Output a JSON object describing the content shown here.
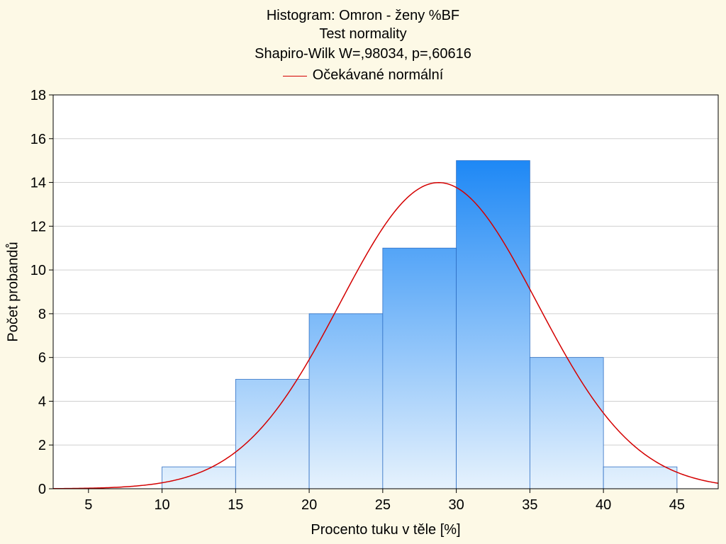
{
  "chart_data": {
    "type": "bar",
    "title": "Histogram: Omron - ženy %BF",
    "subtitle": "Test normality",
    "test_result": "Shapiro-Wilk W=,98034, p=,60616",
    "legend": [
      "Očekávané normální"
    ],
    "legend_placement": "top-center",
    "xlabel": "Procento tuku v těle [%]",
    "ylabel": "Počet probandů",
    "bins": [
      [
        10,
        15
      ],
      [
        15,
        20
      ],
      [
        20,
        25
      ],
      [
        25,
        30
      ],
      [
        30,
        35
      ],
      [
        35,
        40
      ],
      [
        40,
        45
      ]
    ],
    "values": [
      1,
      5,
      8,
      11,
      15,
      6,
      1
    ],
    "xlim": [
      2.6,
      47.8
    ],
    "ylim": [
      0,
      18
    ],
    "xticks": [
      5,
      10,
      15,
      20,
      25,
      30,
      35,
      40,
      45
    ],
    "yticks": [
      0,
      2,
      4,
      6,
      8,
      10,
      12,
      14,
      16,
      18
    ],
    "grid": true,
    "normal_curve": {
      "name": "Očekávané normální",
      "mean": 28.8,
      "sd": 6.7,
      "n": 47,
      "bin_width": 5
    },
    "colors": {
      "bar_top": "#1e88f5",
      "bar_bottom": "#e6f2fd",
      "bar_edge": "#2f6fc4",
      "curve": "#d40000",
      "plot_bg": "#ffffff",
      "page_bg": "#fdf9e6",
      "grid": "#d0d0d0"
    }
  }
}
